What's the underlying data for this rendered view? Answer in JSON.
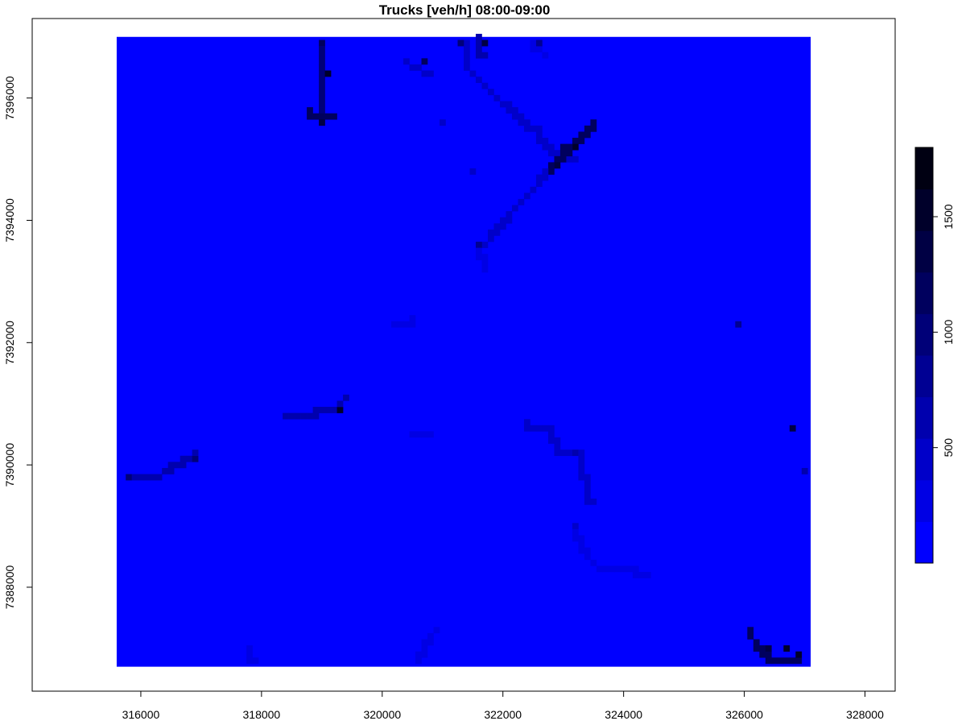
{
  "chart_data": {
    "type": "heatmap",
    "title": "Trucks [veh/h] 08:00-09:00",
    "xlabel": "",
    "ylabel": "",
    "xlim": [
      314200,
      328500
    ],
    "ylim": [
      7386300,
      7397300
    ],
    "raster_extent": {
      "x": [
        315600,
        327100
      ],
      "y": [
        7386700,
        7397000
      ]
    },
    "x_ticks": [
      316000,
      318000,
      320000,
      322000,
      324000,
      326000,
      328000
    ],
    "x_tick_labels": [
      "316000",
      "318000",
      "320000",
      "322000",
      "324000",
      "326000",
      "328000"
    ],
    "y_ticks": [
      7388000,
      7390000,
      7392000,
      7394000,
      7396000
    ],
    "y_tick_labels": [
      "7388000",
      "7390000",
      "7392000",
      "7394000",
      "7396000"
    ],
    "grid": false,
    "legend": {
      "placement": "right",
      "range": [
        0,
        1800
      ],
      "ticks": [
        500,
        1000,
        1500
      ],
      "tick_labels": [
        "500",
        "1000",
        "1500"
      ],
      "colors": [
        "#0000ff",
        "#0000e4",
        "#0000c9",
        "#0000ae",
        "#000093",
        "#000078",
        "#00005e",
        "#000044",
        "#00002a",
        "#000012"
      ]
    },
    "background_value": 0,
    "polylines": [
      {
        "points": [
          [
            318950,
            7396900
          ],
          [
            318950,
            7396300
          ],
          [
            319020,
            7395900
          ],
          [
            319020,
            7395600
          ]
        ],
        "value": 900
      },
      {
        "points": [
          [
            318750,
            7395750
          ],
          [
            319150,
            7395650
          ]
        ],
        "value": 1200
      },
      {
        "points": [
          [
            321350,
            7396900
          ],
          [
            321400,
            7396500
          ],
          [
            321600,
            7396300
          ],
          [
            321900,
            7396000
          ],
          [
            322150,
            7395800
          ]
        ],
        "value": 400
      },
      {
        "points": [
          [
            322150,
            7395800
          ],
          [
            322550,
            7395450
          ],
          [
            322800,
            7395150
          ],
          [
            323150,
            7394950
          ]
        ],
        "value": 450
      },
      {
        "points": [
          [
            322450,
            7396900
          ],
          [
            322700,
            7396700
          ]
        ],
        "value": 350
      },
      {
        "points": [
          [
            323500,
            7395550
          ],
          [
            323250,
            7395300
          ],
          [
            323100,
            7395150
          ],
          [
            322850,
            7394900
          ],
          [
            322750,
            7394800
          ]
        ],
        "value": 1100
      },
      {
        "points": [
          [
            322750,
            7394800
          ],
          [
            322500,
            7394500
          ],
          [
            322200,
            7394200
          ],
          [
            321900,
            7393850
          ],
          [
            321700,
            7393600
          ]
        ],
        "value": 400
      },
      {
        "points": [
          [
            321600,
            7393550
          ],
          [
            321700,
            7393200
          ]
        ],
        "value": 350
      },
      {
        "points": [
          [
            320350,
            7396600
          ],
          [
            320750,
            7396400
          ]
        ],
        "value": 400
      },
      {
        "points": [
          [
            321600,
            7396950
          ],
          [
            321650,
            7396700
          ]
        ],
        "value": 700
      },
      {
        "points": [
          [
            315750,
            7389750
          ],
          [
            316200,
            7389750
          ],
          [
            316600,
            7390000
          ],
          [
            316900,
            7390150
          ]
        ],
        "value": 600
      },
      {
        "points": [
          [
            318350,
            7390750
          ],
          [
            318900,
            7390850
          ],
          [
            319250,
            7390850
          ],
          [
            319350,
            7391050
          ]
        ],
        "value": 650
      },
      {
        "points": [
          [
            320200,
            7392250
          ],
          [
            320500,
            7392350
          ]
        ],
        "value": 300
      },
      {
        "points": [
          [
            320500,
            7390450
          ],
          [
            320800,
            7390450
          ]
        ],
        "value": 250
      },
      {
        "points": [
          [
            322400,
            7390650
          ],
          [
            322750,
            7390550
          ],
          [
            322950,
            7390200
          ],
          [
            323250,
            7390150
          ],
          [
            323350,
            7389800
          ],
          [
            323450,
            7389400
          ]
        ],
        "value": 400
      },
      {
        "points": [
          [
            323150,
            7388950
          ],
          [
            323350,
            7388600
          ],
          [
            323500,
            7388400
          ],
          [
            323700,
            7388250
          ],
          [
            324150,
            7388250
          ],
          [
            324400,
            7388150
          ]
        ],
        "value": 350
      },
      {
        "points": [
          [
            326100,
            7387250
          ],
          [
            326200,
            7387050
          ],
          [
            326400,
            7386850
          ],
          [
            326700,
            7386800
          ],
          [
            326900,
            7386750
          ]
        ],
        "value": 1100
      },
      {
        "points": [
          [
            320900,
            7387300
          ],
          [
            320700,
            7387050
          ],
          [
            320600,
            7386800
          ]
        ],
        "value": 300
      },
      {
        "points": [
          [
            317800,
            7387000
          ],
          [
            317850,
            7386750
          ]
        ],
        "value": 250
      }
    ],
    "hotspots": [
      {
        "x": 319050,
        "y": 7396400,
        "value": 1500
      },
      {
        "x": 319000,
        "y": 7395550,
        "value": 1300
      },
      {
        "x": 318950,
        "y": 7396850,
        "value": 1100
      },
      {
        "x": 320650,
        "y": 7396600,
        "value": 1200
      },
      {
        "x": 321300,
        "y": 7396850,
        "value": 900
      },
      {
        "x": 321650,
        "y": 7396850,
        "value": 1400
      },
      {
        "x": 323150,
        "y": 7395200,
        "value": 1600
      },
      {
        "x": 323000,
        "y": 7395150,
        "value": 1200
      },
      {
        "x": 322850,
        "y": 7394900,
        "value": 1400
      },
      {
        "x": 322750,
        "y": 7394800,
        "value": 1000
      },
      {
        "x": 321600,
        "y": 7393550,
        "value": 800
      },
      {
        "x": 319250,
        "y": 7390850,
        "value": 1500
      },
      {
        "x": 316850,
        "y": 7390100,
        "value": 900
      },
      {
        "x": 315800,
        "y": 7389750,
        "value": 1000
      },
      {
        "x": 326800,
        "y": 7390550,
        "value": 1300
      },
      {
        "x": 326950,
        "y": 7389850,
        "value": 600
      },
      {
        "x": 325900,
        "y": 7392250,
        "value": 800
      },
      {
        "x": 326350,
        "y": 7386950,
        "value": 1400
      },
      {
        "x": 326700,
        "y": 7386950,
        "value": 1500
      },
      {
        "x": 326850,
        "y": 7386850,
        "value": 1600
      },
      {
        "x": 322550,
        "y": 7396900,
        "value": 800
      },
      {
        "x": 320950,
        "y": 7395550,
        "value": 500
      },
      {
        "x": 321450,
        "y": 7394800,
        "value": 450
      },
      {
        "x": 323150,
        "y": 7390150,
        "value": 700
      },
      {
        "x": 323200,
        "y": 7388950,
        "value": 500
      }
    ]
  }
}
